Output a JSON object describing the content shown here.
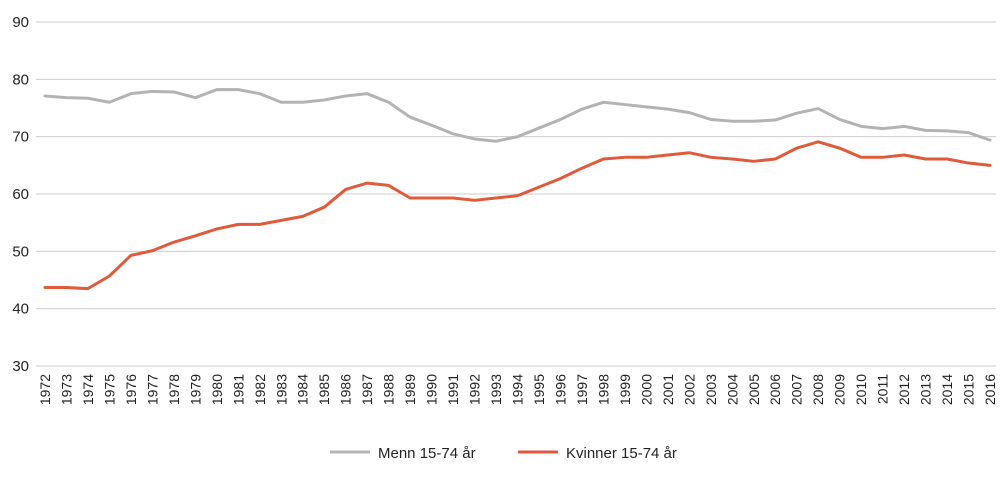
{
  "chart_data": {
    "type": "line",
    "categories": [
      "1972",
      "1973",
      "1974",
      "1975",
      "1976",
      "1977",
      "1978",
      "1979",
      "1980",
      "1981",
      "1982",
      "1983",
      "1984",
      "1985",
      "1986",
      "1987",
      "1988",
      "1989",
      "1990",
      "1991",
      "1992",
      "1993",
      "1994",
      "1995",
      "1996",
      "1997",
      "1998",
      "1999",
      "2000",
      "2001",
      "2002",
      "2003",
      "2004",
      "2005",
      "2006",
      "2007",
      "2008",
      "2009",
      "2010",
      "2011",
      "2012",
      "2013",
      "2014",
      "2015",
      "2016"
    ],
    "series": [
      {
        "name": "Menn 15-74 år",
        "color": "#b3b3b3",
        "values": [
          77.1,
          76.8,
          76.7,
          76.0,
          77.5,
          77.9,
          77.8,
          76.8,
          78.2,
          78.2,
          77.5,
          76.0,
          76.0,
          76.4,
          77.1,
          77.5,
          76.0,
          73.4,
          72.0,
          70.5,
          69.6,
          69.2,
          70.0,
          71.5,
          73.0,
          74.8,
          76.0,
          75.6,
          75.2,
          74.8,
          74.2,
          73.0,
          72.7,
          72.7,
          72.9,
          74.1,
          74.9,
          73.0,
          71.8,
          71.4,
          71.8,
          71.1,
          71.0,
          70.7,
          69.4
        ]
      },
      {
        "name": "Kvinner 15-74 år",
        "color": "#e05a3c",
        "values": [
          43.7,
          43.7,
          43.5,
          45.7,
          49.3,
          50.1,
          51.6,
          52.7,
          53.9,
          54.7,
          54.7,
          55.4,
          56.1,
          57.7,
          60.8,
          61.9,
          61.5,
          59.3,
          59.3,
          59.3,
          58.9,
          59.3,
          59.7,
          61.2,
          62.7,
          64.5,
          66.1,
          66.4,
          66.4,
          66.8,
          67.2,
          66.4,
          66.1,
          65.7,
          66.1,
          68.0,
          69.1,
          68.0,
          66.4,
          66.4,
          66.8,
          66.1,
          66.1,
          65.4,
          65.0
        ]
      }
    ],
    "y_ticks": [
      "90",
      "80",
      "70",
      "60",
      "50",
      "40",
      "30"
    ],
    "ylim": [
      30,
      90
    ],
    "grid": true,
    "legend_position": "bottom-center"
  }
}
